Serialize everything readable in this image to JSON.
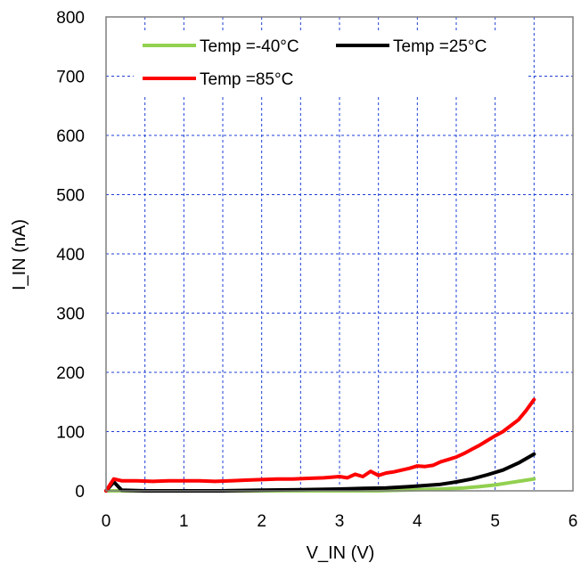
{
  "chart_data": {
    "type": "line",
    "xlabel": "V_IN (V)",
    "ylabel": "I_IN (nA)",
    "xlim": [
      0,
      6
    ],
    "ylim": [
      0,
      800
    ],
    "x_ticks": [
      0,
      1,
      2,
      3,
      4,
      5,
      6
    ],
    "y_ticks": [
      0,
      100,
      200,
      300,
      400,
      500,
      600,
      700,
      800
    ],
    "x_minor_step": 0.5,
    "grid": true,
    "legend_position": "top",
    "series": [
      {
        "name": "Temp =-40°C",
        "color": "#92d050",
        "points": [
          [
            0,
            0
          ],
          [
            0.5,
            0
          ],
          [
            1,
            0
          ],
          [
            1.5,
            0
          ],
          [
            2,
            0
          ],
          [
            2.5,
            0
          ],
          [
            3,
            0
          ],
          [
            3.5,
            0
          ],
          [
            3.8,
            1
          ],
          [
            4,
            2
          ],
          [
            4.3,
            3
          ],
          [
            4.6,
            5
          ],
          [
            4.8,
            7
          ],
          [
            5,
            10
          ],
          [
            5.2,
            14
          ],
          [
            5.4,
            18
          ],
          [
            5.5,
            20
          ]
        ]
      },
      {
        "name": "Temp =25°C",
        "color": "#000000",
        "points": [
          [
            0,
            0
          ],
          [
            0.1,
            15
          ],
          [
            0.2,
            1
          ],
          [
            0.5,
            0
          ],
          [
            1,
            0
          ],
          [
            1.5,
            0
          ],
          [
            2,
            1
          ],
          [
            2.5,
            2
          ],
          [
            3,
            3
          ],
          [
            3.3,
            4
          ],
          [
            3.6,
            5
          ],
          [
            3.9,
            7
          ],
          [
            4.1,
            9
          ],
          [
            4.3,
            11
          ],
          [
            4.5,
            15
          ],
          [
            4.7,
            20
          ],
          [
            4.9,
            27
          ],
          [
            5.1,
            35
          ],
          [
            5.3,
            47
          ],
          [
            5.5,
            62
          ]
        ]
      },
      {
        "name": "Temp =85°C",
        "color": "#ff0000",
        "points": [
          [
            0,
            0
          ],
          [
            0.1,
            20
          ],
          [
            0.2,
            17
          ],
          [
            0.4,
            17
          ],
          [
            0.6,
            16
          ],
          [
            0.8,
            17
          ],
          [
            1.0,
            17
          ],
          [
            1.2,
            17
          ],
          [
            1.4,
            16
          ],
          [
            1.6,
            17
          ],
          [
            1.8,
            18
          ],
          [
            2.0,
            19
          ],
          [
            2.2,
            20
          ],
          [
            2.4,
            20
          ],
          [
            2.6,
            21
          ],
          [
            2.8,
            22
          ],
          [
            3.0,
            24
          ],
          [
            3.1,
            22
          ],
          [
            3.2,
            28
          ],
          [
            3.3,
            24
          ],
          [
            3.4,
            33
          ],
          [
            3.5,
            26
          ],
          [
            3.6,
            30
          ],
          [
            3.7,
            32
          ],
          [
            3.8,
            35
          ],
          [
            3.9,
            38
          ],
          [
            4.0,
            42
          ],
          [
            4.1,
            41
          ],
          [
            4.2,
            43
          ],
          [
            4.3,
            49
          ],
          [
            4.4,
            53
          ],
          [
            4.5,
            57
          ],
          [
            4.6,
            63
          ],
          [
            4.7,
            70
          ],
          [
            4.8,
            77
          ],
          [
            4.9,
            85
          ],
          [
            5.0,
            93
          ],
          [
            5.1,
            100
          ],
          [
            5.2,
            110
          ],
          [
            5.3,
            120
          ],
          [
            5.4,
            136
          ],
          [
            5.5,
            154
          ]
        ]
      }
    ]
  }
}
